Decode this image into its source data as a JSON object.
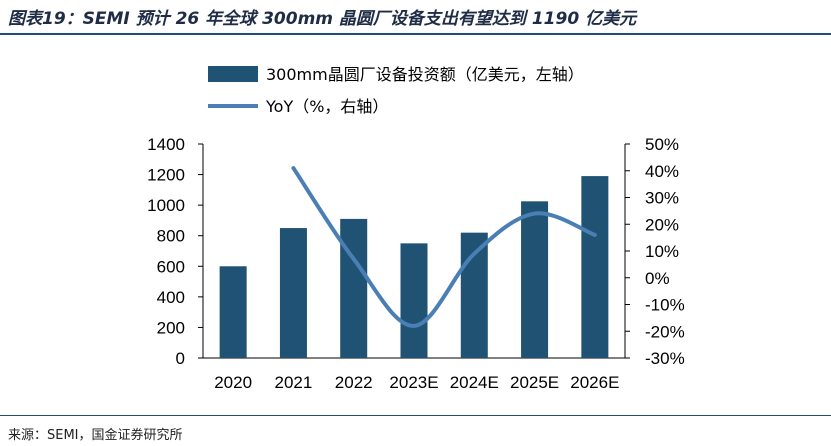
{
  "title": "图表19：SEMI 预计 26 年全球 300mm 晶圆厂设备支出有望达到 1190 亿美元",
  "source": "来源：SEMI，国金证券研究所",
  "colors": {
    "bar": "#1f5273",
    "line": "#4a7fb5",
    "rule": "#1f4e79"
  },
  "chart_data": {
    "type": "bar",
    "categories": [
      "2020",
      "2021",
      "2022",
      "2023E",
      "2024E",
      "2025E",
      "2026E"
    ],
    "series": [
      {
        "name": "300mm晶圆厂设备投资额（亿美元，左轴）",
        "type": "bar",
        "axis": "left",
        "values": [
          600,
          850,
          910,
          750,
          820,
          1025,
          1190
        ]
      },
      {
        "name": "YoY（%，右轴）",
        "type": "line",
        "axis": "right",
        "smooth": true,
        "values": [
          null,
          41,
          7,
          -18,
          9,
          24,
          16
        ]
      }
    ],
    "y_left": {
      "min": 0,
      "max": 1400,
      "step": 200,
      "ticks": [
        "0",
        "200",
        "400",
        "600",
        "800",
        "1000",
        "1200",
        "1400"
      ]
    },
    "y_right": {
      "min": -30,
      "max": 50,
      "step": 10,
      "ticks": [
        "-30%",
        "-20%",
        "-10%",
        "0%",
        "10%",
        "20%",
        "30%",
        "40%",
        "50%"
      ]
    },
    "legend_position": "top",
    "grid": false
  }
}
